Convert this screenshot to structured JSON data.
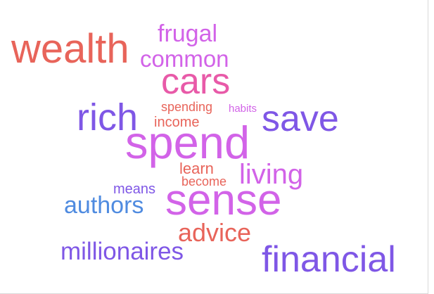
{
  "cloud": {
    "words": [
      {
        "text": "wealth",
        "color": "#e8645a"
      },
      {
        "text": "frugal",
        "color": "#d263e8"
      },
      {
        "text": "common",
        "color": "#d263e8"
      },
      {
        "text": "cars",
        "color": "#e85aa8"
      },
      {
        "text": "rich",
        "color": "#7f57e6"
      },
      {
        "text": "spending",
        "color": "#e8645a"
      },
      {
        "text": "habits",
        "color": "#d263e8"
      },
      {
        "text": "save",
        "color": "#7f57e6"
      },
      {
        "text": "income",
        "color": "#e8645a"
      },
      {
        "text": "spend",
        "color": "#d263e8"
      },
      {
        "text": "learn",
        "color": "#e8645a"
      },
      {
        "text": "living",
        "color": "#d263e8"
      },
      {
        "text": "means",
        "color": "#7f57e6"
      },
      {
        "text": "become",
        "color": "#e8645a"
      },
      {
        "text": "sense",
        "color": "#d263e8"
      },
      {
        "text": "authors",
        "color": "#4f8be0"
      },
      {
        "text": "advice",
        "color": "#e8645a"
      },
      {
        "text": "millionaires",
        "color": "#7f57e6"
      },
      {
        "text": "financial",
        "color": "#7f57e6"
      }
    ]
  }
}
